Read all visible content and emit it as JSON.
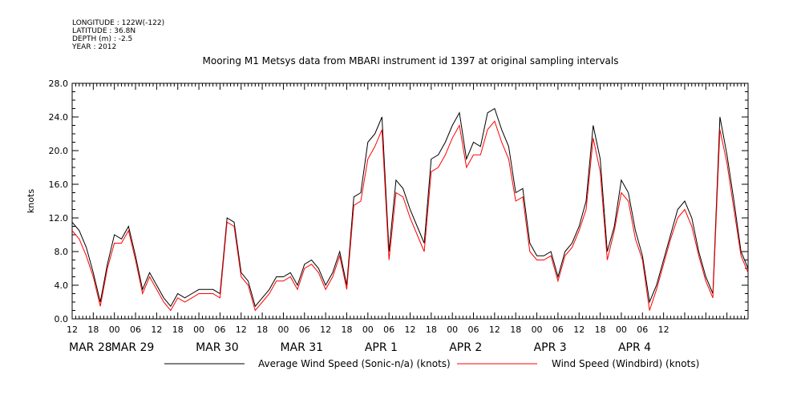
{
  "header": {
    "meta_lines": [
      "LONGITUDE : 122W(-122)",
      "LATITUDE : 36.8N",
      "DEPTH (m) : -2.5",
      "YEAR : 2012"
    ],
    "title": "Mooring M1 Metsys data from MBARI instrument id 1397 at original sampling intervals"
  },
  "chart_data": {
    "type": "line",
    "title": "Mooring M1 Metsys data from MBARI instrument id 1397 at original sampling intervals",
    "ylabel": "knots",
    "xlabel": "",
    "ylim": [
      0,
      28
    ],
    "xlim": [
      0,
      192
    ],
    "y_ticks": [
      "0.0",
      "4.0",
      "8.0",
      "12.0",
      "16.0",
      "20.0",
      "24.0",
      "28.0"
    ],
    "x_tick_labels": [
      "12",
      "18",
      "00",
      "06",
      "12",
      "18",
      "00",
      "06",
      "12",
      "18",
      "00",
      "06",
      "12",
      "18",
      "00",
      "06",
      "12",
      "18",
      "00",
      "06",
      "12",
      "18",
      "00",
      "06",
      "12",
      "18",
      "00",
      "06",
      "12"
    ],
    "date_labels": [
      "MAR 28",
      "MAR 29",
      "MAR 30",
      "MAR 31",
      "APR  1",
      "APR  2",
      "APR  3",
      "APR  4"
    ],
    "grid": false,
    "legend_placement": "bottom",
    "x_unit": "hours since 2012-03-28 12:00",
    "series": [
      {
        "name": "Average Wind Speed (Sonic-n/a) (knots)",
        "color": "#000000",
        "x": [
          0,
          2,
          4,
          6,
          8,
          10,
          12,
          14,
          16,
          18,
          20,
          22,
          24,
          26,
          28,
          30,
          32,
          34,
          36,
          38,
          40,
          42,
          44,
          46,
          48,
          50,
          52,
          54,
          56,
          58,
          60,
          62,
          64,
          66,
          68,
          70,
          72,
          74,
          76,
          78,
          80,
          82,
          84,
          86,
          88,
          90,
          92,
          94,
          96,
          98,
          100,
          102,
          104,
          106,
          108,
          110,
          112,
          114,
          116,
          118,
          120,
          122,
          124,
          126,
          128,
          130,
          132,
          134,
          136,
          138,
          140,
          142,
          144,
          146,
          148,
          150,
          152,
          154,
          156,
          158,
          160,
          162,
          164,
          166,
          168,
          170,
          172,
          174,
          176,
          178,
          180,
          182,
          184,
          186,
          188,
          190,
          192
        ],
        "values": [
          11.5,
          10.5,
          8.5,
          5.5,
          2.0,
          6.5,
          10.0,
          9.5,
          11.0,
          7.5,
          3.5,
          5.5,
          4.0,
          2.5,
          1.5,
          3.0,
          2.5,
          3.0,
          3.5,
          3.5,
          3.5,
          3.0,
          12.0,
          11.5,
          5.5,
          4.5,
          1.5,
          2.5,
          3.5,
          5.0,
          5.0,
          5.5,
          4.0,
          6.5,
          7.0,
          6.0,
          4.0,
          5.5,
          8.0,
          4.0,
          14.5,
          15.0,
          21.0,
          22.0,
          24.0,
          8.0,
          16.5,
          15.5,
          13.0,
          11.0,
          9.0,
          19.0,
          19.5,
          21.0,
          23.0,
          24.5,
          19.0,
          21.0,
          20.5,
          24.5,
          25.0,
          22.5,
          20.5,
          15.0,
          15.5,
          9.0,
          7.5,
          7.5,
          8.0,
          5.0,
          8.0,
          9.0,
          11.0,
          14.0,
          23.0,
          19.0,
          8.0,
          11.0,
          16.5,
          15.0,
          10.5,
          7.5,
          2.0,
          4.0,
          7.0,
          10.0,
          13.0,
          14.0,
          12.0,
          8.0,
          5.0,
          3.0,
          24.0,
          19.5,
          14.0,
          8.0,
          6.0
        ]
      },
      {
        "name": "Wind Speed (Windbird) (knots)",
        "color": "#ff0000",
        "x": [
          0,
          2,
          4,
          6,
          8,
          10,
          12,
          14,
          16,
          18,
          20,
          22,
          24,
          26,
          28,
          30,
          32,
          34,
          36,
          38,
          40,
          42,
          44,
          46,
          48,
          50,
          52,
          54,
          56,
          58,
          60,
          62,
          64,
          66,
          68,
          70,
          72,
          74,
          76,
          78,
          80,
          82,
          84,
          86,
          88,
          90,
          92,
          94,
          96,
          98,
          100,
          102,
          104,
          106,
          108,
          110,
          112,
          114,
          116,
          118,
          120,
          122,
          124,
          126,
          128,
          130,
          132,
          134,
          136,
          138,
          140,
          142,
          144,
          146,
          148,
          150,
          152,
          154,
          156,
          158,
          160,
          162,
          164,
          166,
          168,
          170,
          172,
          174,
          176,
          178,
          180,
          182,
          184,
          186,
          188,
          190,
          192
        ],
        "values": [
          10.5,
          9.5,
          7.5,
          5.0,
          1.5,
          6.0,
          9.0,
          9.0,
          10.5,
          7.0,
          3.0,
          5.0,
          3.5,
          2.0,
          1.0,
          2.5,
          2.0,
          2.5,
          3.0,
          3.0,
          3.0,
          2.5,
          11.5,
          11.0,
          5.0,
          4.0,
          1.0,
          2.0,
          3.0,
          4.5,
          4.5,
          5.0,
          3.5,
          6.0,
          6.5,
          5.5,
          3.5,
          5.0,
          7.5,
          3.5,
          13.5,
          14.0,
          19.0,
          20.5,
          22.5,
          7.0,
          15.0,
          14.5,
          12.0,
          10.0,
          8.0,
          17.5,
          18.0,
          19.5,
          21.5,
          23.0,
          18.0,
          19.5,
          19.5,
          22.5,
          23.5,
          21.0,
          19.0,
          14.0,
          14.5,
          8.0,
          7.0,
          7.0,
          7.5,
          4.5,
          7.5,
          8.5,
          10.5,
          13.0,
          21.5,
          17.5,
          7.0,
          10.5,
          15.0,
          14.0,
          9.5,
          7.0,
          1.0,
          3.5,
          6.5,
          9.5,
          12.0,
          13.0,
          11.0,
          7.5,
          4.5,
          2.5,
          22.5,
          18.5,
          13.0,
          7.5,
          5.5
        ]
      }
    ]
  }
}
